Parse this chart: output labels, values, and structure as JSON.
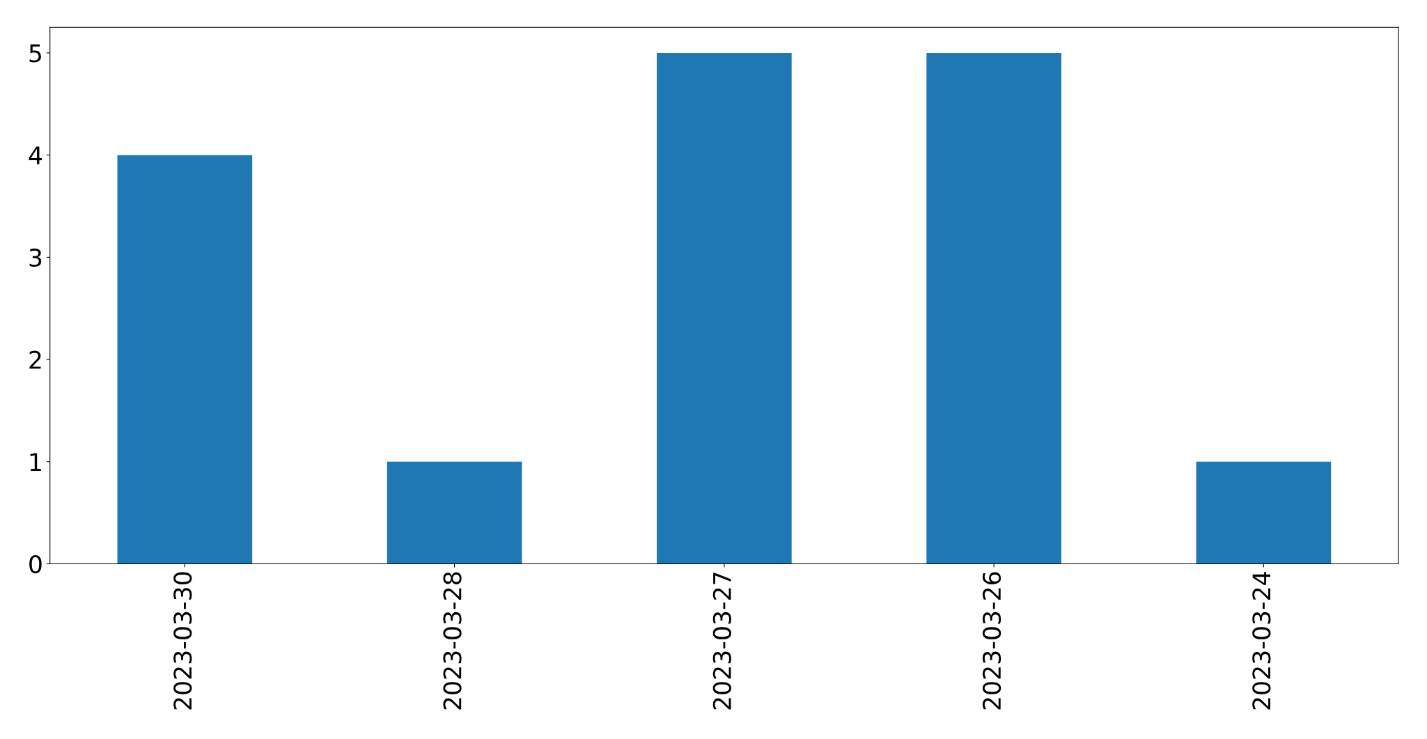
{
  "chart_data": {
    "type": "bar",
    "categories": [
      "2023-03-30",
      "2023-03-28",
      "2023-03-27",
      "2023-03-26",
      "2023-03-24"
    ],
    "values": [
      4,
      1,
      5,
      5,
      1
    ],
    "color": "#1f77b4",
    "ylim": [
      0,
      5.25
    ],
    "yticks": [
      0,
      1,
      2,
      3,
      4,
      5
    ],
    "grid": false
  }
}
